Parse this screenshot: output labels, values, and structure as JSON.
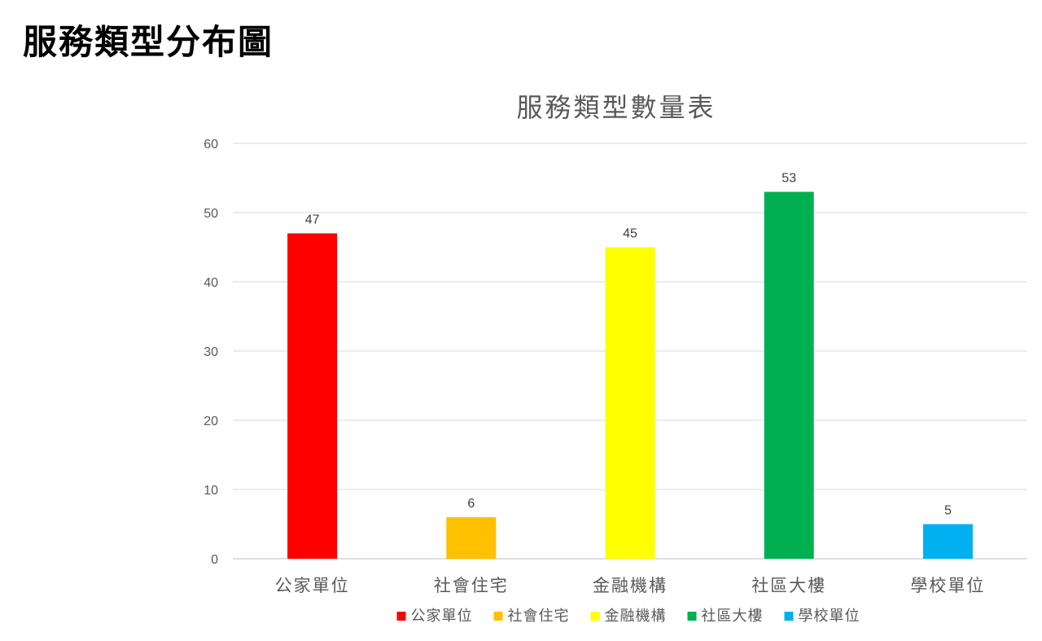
{
  "page": {
    "title": "服務類型分布圖"
  },
  "chart_data": {
    "type": "bar",
    "title": "服務類型數量表",
    "xlabel": "",
    "ylabel": "",
    "categories": [
      "公家單位",
      "社會住宅",
      "金融機構",
      "社區大樓",
      "學校單位"
    ],
    "values": [
      47,
      6,
      45,
      53,
      5
    ],
    "colors": [
      "#ff0000",
      "#ffc000",
      "#ffff00",
      "#00b050",
      "#00b0f0"
    ],
    "ylim": [
      0,
      60
    ],
    "yticks": [
      0,
      10,
      20,
      30,
      40,
      50,
      60
    ],
    "grid": true,
    "data_labels": true,
    "legend": {
      "placement": "bottom",
      "entries": [
        "公家單位",
        "社會住宅",
        "金融機構",
        "社區大樓",
        "學校單位"
      ]
    }
  }
}
